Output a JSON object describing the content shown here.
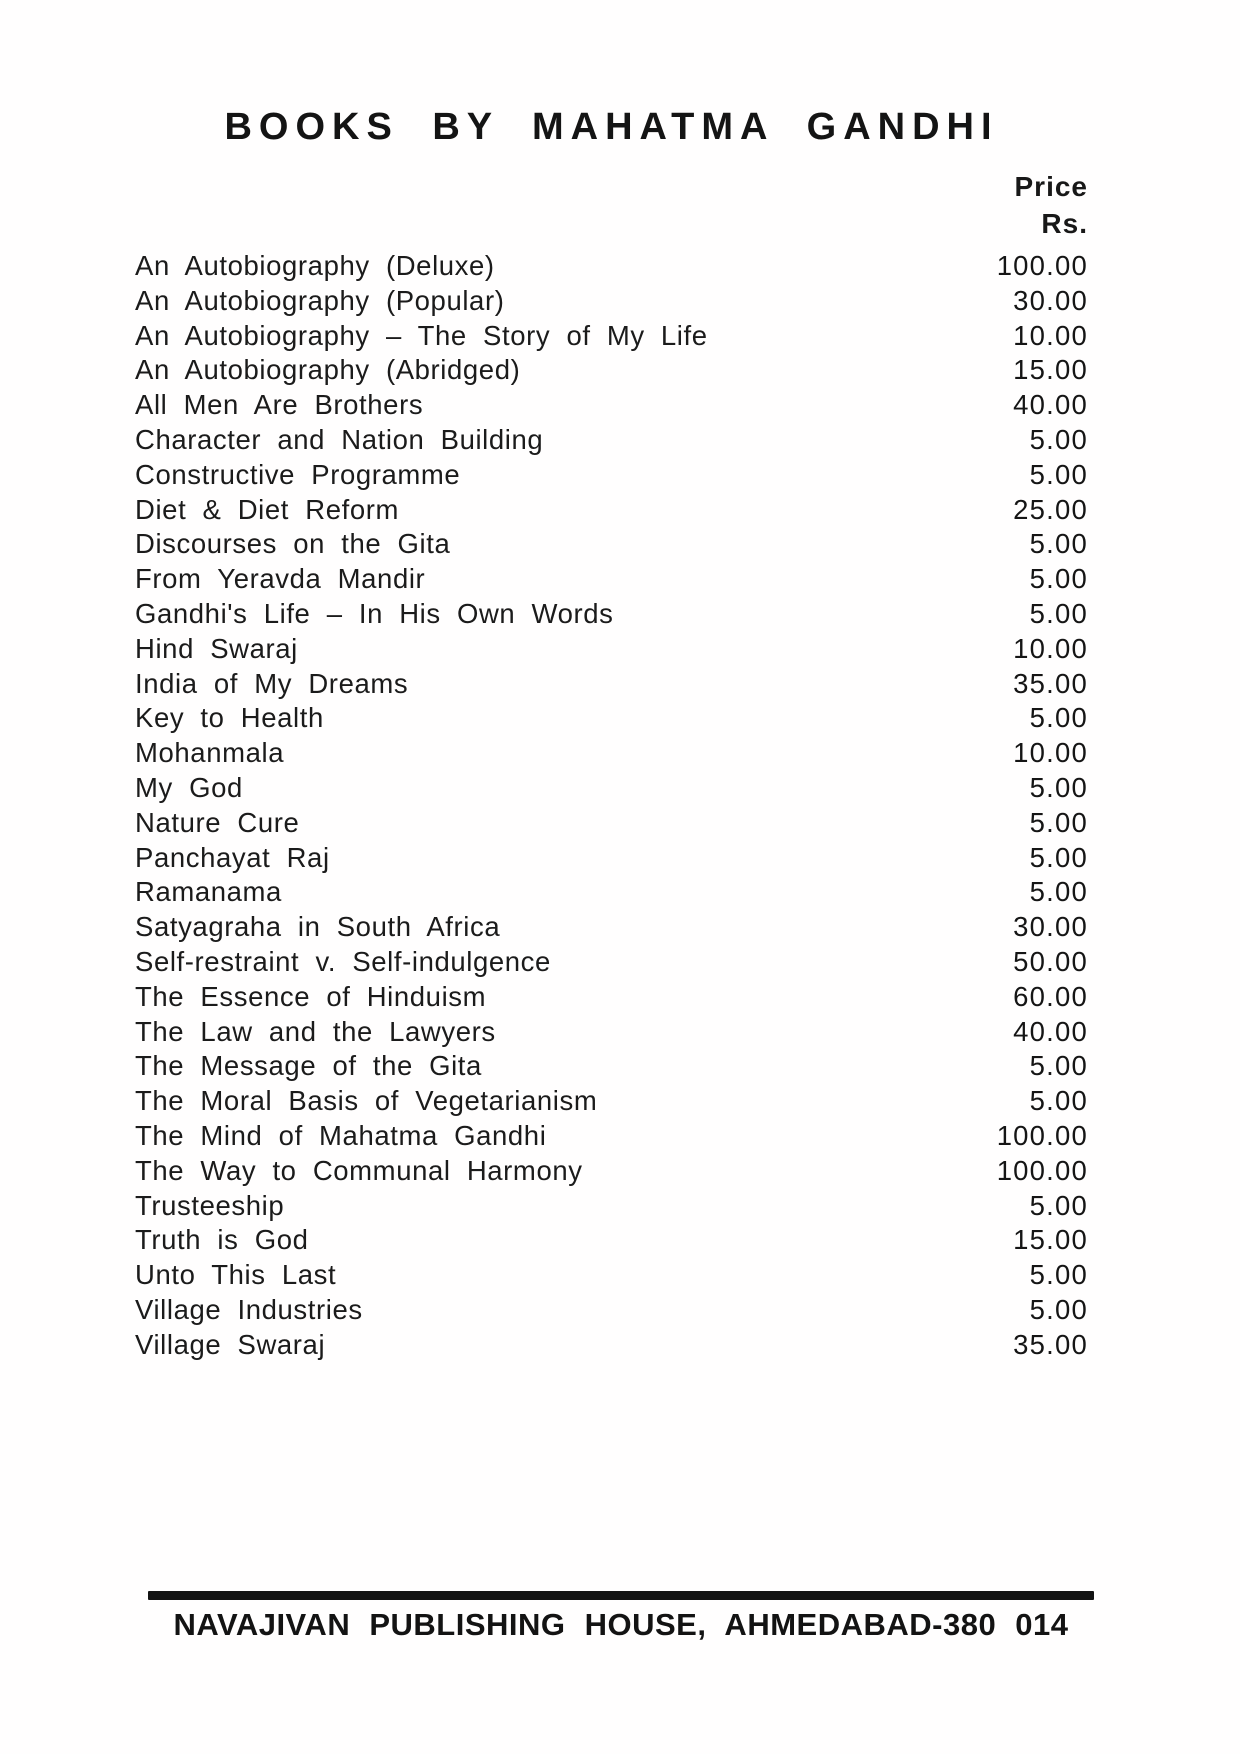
{
  "header": {
    "title": "BOOKS BY MAHATMA GANDHI",
    "price_label": "Price",
    "currency_label": "Rs."
  },
  "books": [
    {
      "title": "An Autobiography (Deluxe)",
      "price": "100.00"
    },
    {
      "title": "An Autobiography (Popular)",
      "price": "30.00"
    },
    {
      "title": "An Autobiography – The Story of My Life",
      "price": "10.00"
    },
    {
      "title": "An Autobiography (Abridged)",
      "price": "15.00"
    },
    {
      "title": "All Men Are Brothers",
      "price": "40.00"
    },
    {
      "title": "Character and Nation Building",
      "price": "5.00"
    },
    {
      "title": "Constructive Programme",
      "price": "5.00"
    },
    {
      "title": "Diet & Diet Reform",
      "price": "25.00"
    },
    {
      "title": "Discourses on the Gita",
      "price": "5.00"
    },
    {
      "title": "From Yeravda Mandir",
      "price": "5.00"
    },
    {
      "title": "Gandhi's Life – In His Own Words",
      "price": "5.00"
    },
    {
      "title": "Hind Swaraj",
      "price": "10.00"
    },
    {
      "title": "India of My Dreams",
      "price": "35.00"
    },
    {
      "title": "Key to Health",
      "price": "5.00"
    },
    {
      "title": "Mohanmala",
      "price": "10.00"
    },
    {
      "title": "My God",
      "price": "5.00"
    },
    {
      "title": "Nature Cure",
      "price": "5.00"
    },
    {
      "title": "Panchayat Raj",
      "price": "5.00"
    },
    {
      "title": "Ramanama",
      "price": "5.00"
    },
    {
      "title": "Satyagraha in South Africa",
      "price": "30.00"
    },
    {
      "title": "Self-restraint v. Self-indulgence",
      "price": "50.00"
    },
    {
      "title": "The Essence of Hinduism",
      "price": "60.00"
    },
    {
      "title": "The Law and the Lawyers",
      "price": "40.00"
    },
    {
      "title": "The Message of the Gita",
      "price": "5.00"
    },
    {
      "title": "The Moral Basis of Vegetarianism",
      "price": "5.00"
    },
    {
      "title": "The Mind of Mahatma Gandhi",
      "price": "100.00"
    },
    {
      "title": "The Way to Communal Harmony",
      "price": "100.00"
    },
    {
      "title": "Trusteeship",
      "price": "5.00"
    },
    {
      "title": "Truth is God",
      "price": "15.00"
    },
    {
      "title": "Unto This Last",
      "price": "5.00"
    },
    {
      "title": "Village Industries",
      "price": "5.00"
    },
    {
      "title": "Village Swaraj",
      "price": "35.00"
    }
  ],
  "footer": {
    "text": "NAVAJIVAN PUBLISHING HOUSE, AHMEDABAD-380 014"
  }
}
